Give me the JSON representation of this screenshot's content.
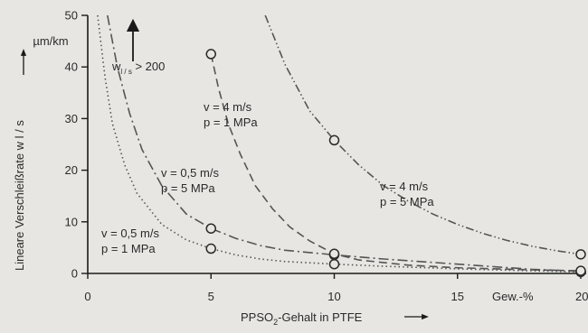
{
  "chart_data": {
    "type": "line",
    "xlabel": "PPSO₂-Gehalt in PTFE",
    "xlabel_parts": {
      "pre": "PPSO",
      "sub": "2",
      "post": "-Gehalt in PTFE"
    },
    "ylabel": "Lineare Verschleißrate w l / s",
    "y_unit": "µm/km",
    "x_unit": "Gew.-%",
    "xlim": [
      0,
      20
    ],
    "ylim": [
      0,
      50
    ],
    "x_ticks": [
      0,
      5,
      10,
      15,
      20
    ],
    "y_ticks": [
      0,
      10,
      20,
      30,
      40,
      50
    ],
    "grid": false,
    "annotation_arrow": {
      "pre": "w",
      "sub": "l / s",
      "post": " > 200"
    },
    "series": [
      {
        "label_lines": [
          "v = 0,5 m/s",
          "p = 1 MPa"
        ],
        "style": "dotted",
        "color": "#555555",
        "marker_points": [
          [
            5,
            4.8
          ],
          [
            10,
            1.8
          ],
          [
            20,
            0.3
          ]
        ],
        "curve": [
          [
            0.4,
            50
          ],
          [
            0.7,
            38
          ],
          [
            1,
            29
          ],
          [
            1.5,
            21
          ],
          [
            2,
            15.5
          ],
          [
            3,
            9.5
          ],
          [
            4,
            6.5
          ],
          [
            5,
            4.8
          ],
          [
            6,
            3.6
          ],
          [
            7,
            2.8
          ],
          [
            8,
            2.3
          ],
          [
            10,
            1.8
          ],
          [
            12,
            1.4
          ],
          [
            15,
            0.9
          ],
          [
            18,
            0.5
          ],
          [
            20,
            0.3
          ]
        ]
      },
      {
        "label_lines": [
          "v = 0,5 m/s",
          "p = 5 MPa"
        ],
        "style": "dashdot",
        "color": "#555555",
        "marker_points": [
          [
            5,
            8.7
          ],
          [
            10,
            3.6
          ],
          [
            20,
            0.4
          ]
        ],
        "curve": [
          [
            0.8,
            50
          ],
          [
            1.2,
            40
          ],
          [
            1.7,
            31
          ],
          [
            2.2,
            24
          ],
          [
            3,
            17
          ],
          [
            4,
            11.5
          ],
          [
            5,
            8.7
          ],
          [
            6,
            6.8
          ],
          [
            7,
            5.4
          ],
          [
            8,
            4.5
          ],
          [
            10,
            3.6
          ],
          [
            12,
            2.8
          ],
          [
            15,
            1.8
          ],
          [
            18,
            0.8
          ],
          [
            20,
            0.4
          ]
        ]
      },
      {
        "label_lines": [
          "v = 4 m/s",
          "p = 1 MPa"
        ],
        "style": "dashed",
        "color": "#555555",
        "marker_points": [
          [
            5,
            42.5
          ],
          [
            10,
            3.8
          ],
          [
            20,
            0.5
          ]
        ],
        "curve": [
          [
            5,
            42.5
          ],
          [
            5.3,
            36
          ],
          [
            5.7,
            29
          ],
          [
            6.2,
            23
          ],
          [
            6.8,
            17
          ],
          [
            7.5,
            12.5
          ],
          [
            8.2,
            9
          ],
          [
            9,
            6.3
          ],
          [
            10,
            3.8
          ],
          [
            11,
            2.6
          ],
          [
            13,
            1.6
          ],
          [
            15,
            1.1
          ],
          [
            18,
            0.7
          ],
          [
            20,
            0.5
          ]
        ]
      },
      {
        "label_lines": [
          "v = 4 m/s",
          "p = 5 MPa"
        ],
        "style": "dashdotdot",
        "color": "#555555",
        "marker_points": [
          [
            10,
            25.8
          ],
          [
            20,
            3.7
          ]
        ],
        "curve": [
          [
            7.2,
            50
          ],
          [
            8,
            40.5
          ],
          [
            9,
            31.5
          ],
          [
            10,
            25.8
          ],
          [
            11,
            21
          ],
          [
            12,
            17
          ],
          [
            13,
            14
          ],
          [
            14,
            11.5
          ],
          [
            15,
            9.5
          ],
          [
            16,
            7.8
          ],
          [
            17,
            6.4
          ],
          [
            18,
            5.3
          ],
          [
            19,
            4.4
          ],
          [
            20,
            3.7
          ]
        ]
      }
    ]
  }
}
